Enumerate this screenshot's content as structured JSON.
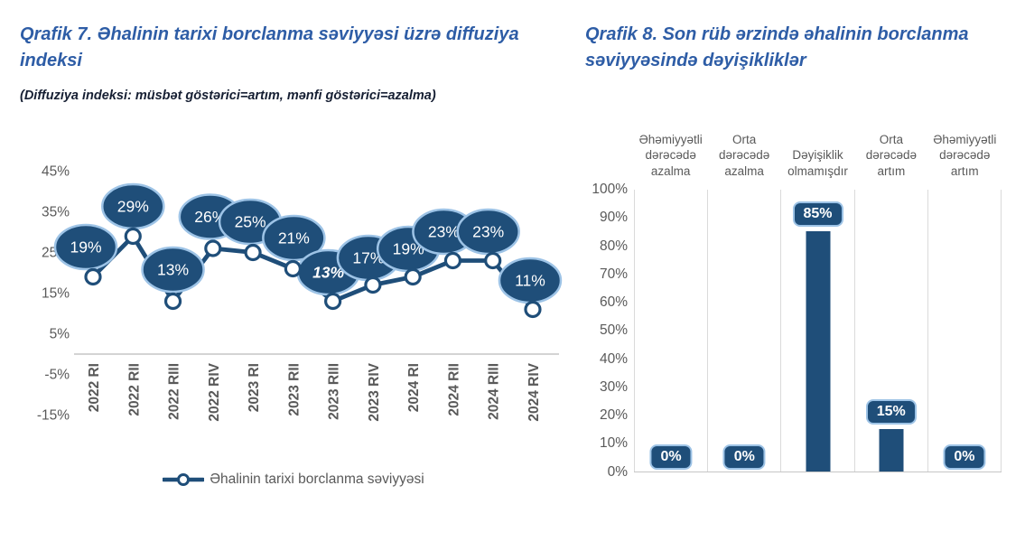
{
  "colors": {
    "accent_navy": "#1F4E79",
    "bubble_border": "#9DC3E6",
    "title_blue": "#2E5DA6",
    "axis_text": "#595959",
    "grid_line": "#DADADA",
    "subtitle_text": "#161F33",
    "axis_line": "#C6C6C6"
  },
  "chart_data": [
    {
      "id": "diffusion-index-line",
      "type": "line",
      "title": "Qrafik 7. Əhalinin tarixi borclanma səviyyəsi üzrə diffuziya indeksi",
      "subtitle": "(Diffuziya indeksi: müsbət göstərici=artım, mənfi göstərici=azalma)",
      "categories": [
        "2022 RI",
        "2022 RII",
        "2022 RIII",
        "2022 RIV",
        "2023 RI",
        "2023 RII",
        "2023 RIII",
        "2023 RIV",
        "2024 RI",
        "2024 RII",
        "2024 RIII",
        "2024 RIV"
      ],
      "series": [
        {
          "name": "Əhalinin tarixi borclanma səviyyəsi",
          "values": [
            19,
            29,
            13,
            26,
            25,
            21,
            13,
            17,
            19,
            23,
            23,
            11
          ]
        }
      ],
      "data_labels": [
        "19%",
        "29%",
        "13%",
        "26%",
        "25%",
        "21%",
        "13%",
        "17%",
        "19%",
        "23%",
        "23%",
        "11%"
      ],
      "emphasized_label_index": 6,
      "yticks": [
        45,
        35,
        25,
        15,
        5,
        -5,
        -15
      ],
      "ylim": [
        -15,
        45
      ],
      "xlabel": "",
      "ylabel": "",
      "grid": false,
      "marker": "open-circle",
      "legend_position": "bottom"
    },
    {
      "id": "quarterly-change-bar",
      "type": "bar",
      "title": "Qrafik 8. Son rüb ərzində əhalinin borclanma səviyyəsində dəyişikliklər",
      "categories": [
        "Əhəmiyyətli dərəcədə azalma",
        "Orta dərəcədə azalma",
        "Dəyişiklik olmamışdır",
        "Orta dərəcədə artım",
        "Əhəmiyyətli dərəcədə artım"
      ],
      "values": [
        0,
        0,
        85,
        15,
        0
      ],
      "data_labels": [
        "0%",
        "0%",
        "85%",
        "15%",
        "0%"
      ],
      "yticks": [
        100,
        90,
        80,
        70,
        60,
        50,
        40,
        30,
        20,
        10,
        0
      ],
      "ylim": [
        0,
        100
      ],
      "xlabel": "",
      "ylabel": "",
      "grid": "vertical-category-separators",
      "legend_position": "none"
    }
  ]
}
